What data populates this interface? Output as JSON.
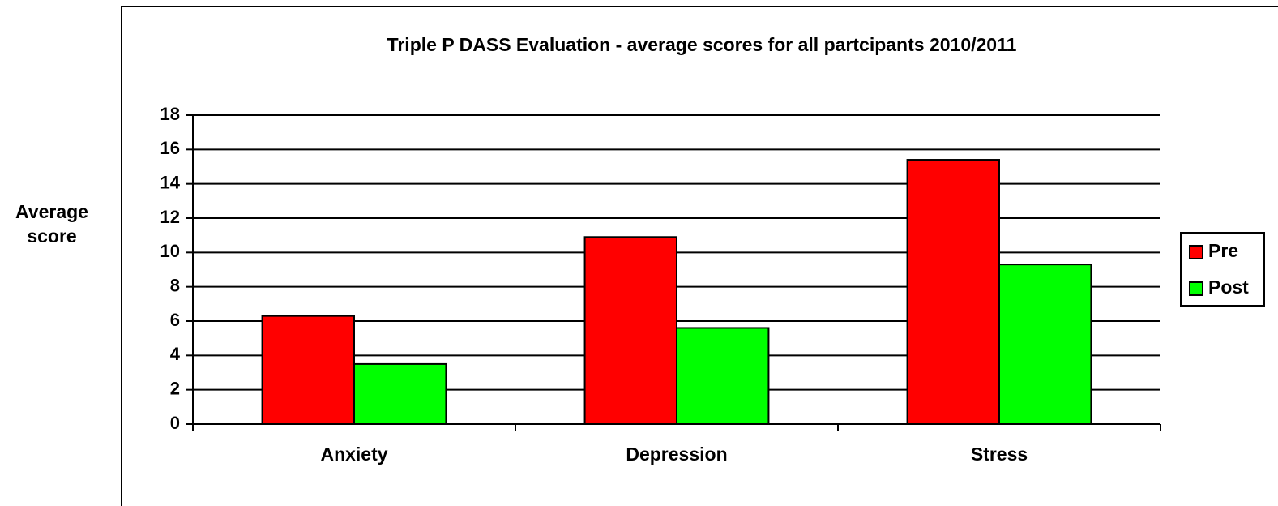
{
  "chart_data": {
    "type": "bar",
    "title": "Triple P DASS Evaluation - average scores for all partcipants 2010/2011",
    "y_label": "Average score",
    "categories": [
      "Anxiety",
      "Depression",
      "Stress"
    ],
    "series": [
      {
        "name": "Pre",
        "color": "#ff0000",
        "values": [
          6.3,
          10.9,
          15.4
        ]
      },
      {
        "name": "Post",
        "color": "#00ff00",
        "values": [
          3.5,
          5.6,
          9.3
        ]
      }
    ],
    "ylim": [
      0,
      18
    ],
    "yticks": [
      0,
      2,
      4,
      6,
      8,
      10,
      12,
      14,
      16,
      18
    ],
    "grid": true,
    "legend": "right"
  }
}
